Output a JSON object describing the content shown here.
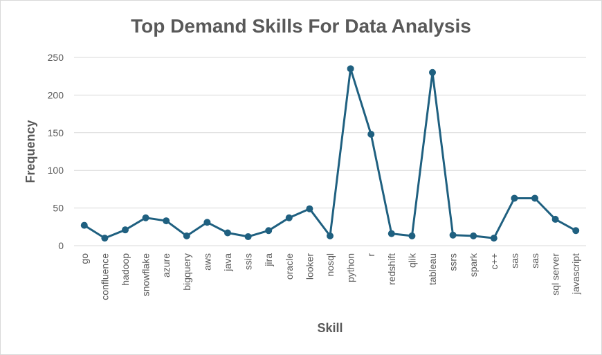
{
  "chart_data": {
    "type": "line",
    "title": "Top Demand Skills For Data Analysis",
    "xlabel": "Skill",
    "ylabel": "Frequency",
    "ylim": [
      0,
      250
    ],
    "yticks": [
      0,
      50,
      100,
      150,
      200,
      250
    ],
    "grid": true,
    "legend": "none",
    "color": "#1f6080",
    "categories": [
      "go",
      "confluence",
      "hadoop",
      "snowflake",
      "azure",
      "bigquery",
      "aws",
      "java",
      "ssis",
      "jira",
      "oracle",
      "looker",
      "nosql",
      "python",
      "r",
      "redshift",
      "qlik",
      "tableau",
      "ssrs",
      "spark",
      "c++",
      "sas",
      "sas",
      "sql server",
      "javascript"
    ],
    "series": [
      {
        "values": [
          27,
          10,
          21,
          37,
          33,
          13,
          31,
          17,
          12,
          20,
          37,
          49,
          13,
          235,
          148,
          16,
          13,
          230,
          14,
          13,
          10,
          63,
          63,
          35,
          20
        ]
      }
    ]
  }
}
